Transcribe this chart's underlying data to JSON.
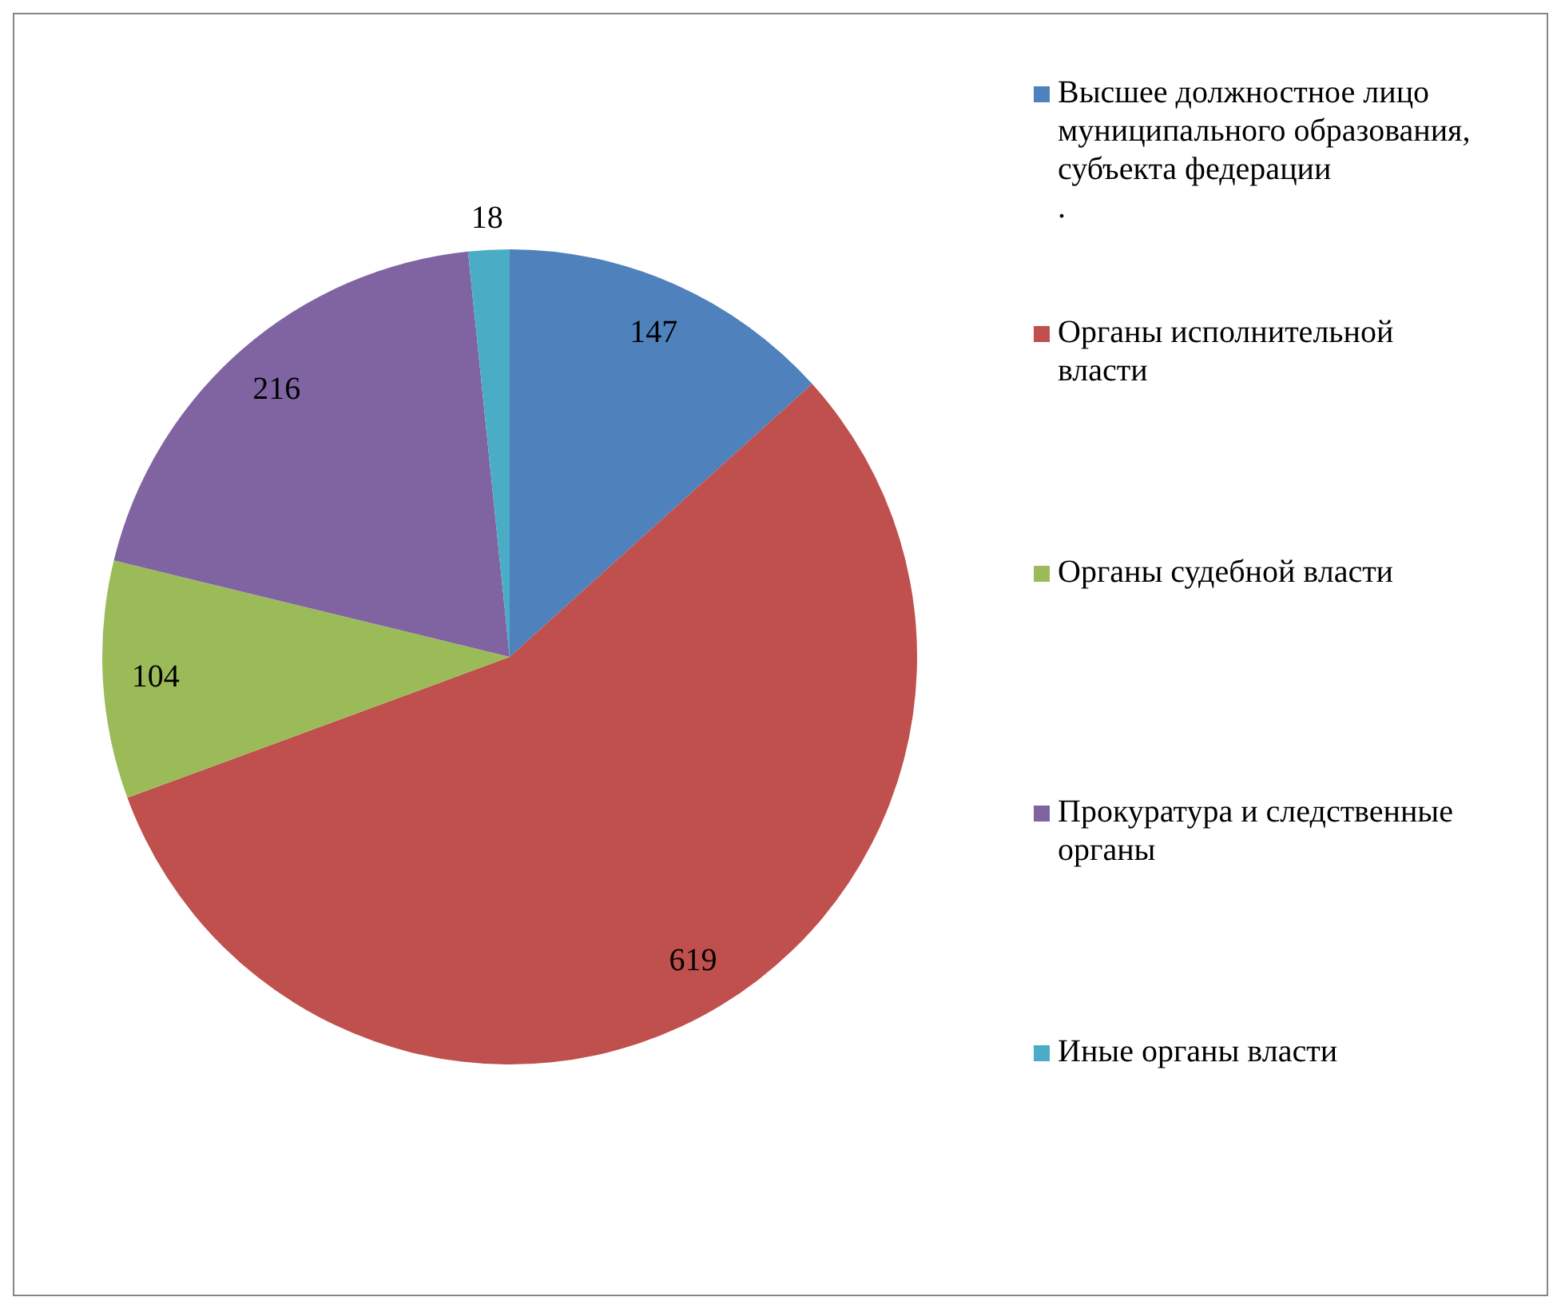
{
  "chart_data": {
    "type": "pie",
    "categories": [
      "Высшее должностное лицо муниципального образования, субъекта федерации\n.",
      "Органы исполнительной власти",
      "Органы судебной власти",
      "Прокуратура и следственные органы",
      "Иные органы власти"
    ],
    "values": [
      147,
      619,
      104,
      216,
      18
    ],
    "colors": [
      "#4f81bd",
      "#c0504d",
      "#9bbb59",
      "#8064a2",
      "#4bacc6"
    ],
    "data_labels": true,
    "legend": "right"
  }
}
